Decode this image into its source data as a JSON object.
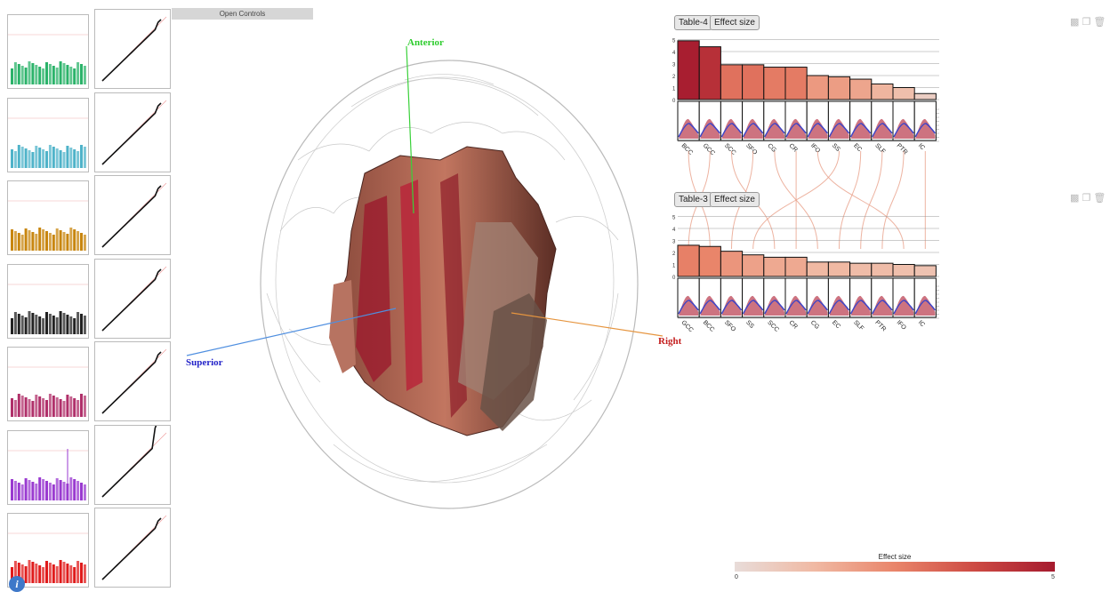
{
  "controls": {
    "open_label": "Open Controls"
  },
  "brain": {
    "anterior_label": "Anterior",
    "superior_label": "Superior",
    "right_label": "Right",
    "anterior_color": "#2ecc2e",
    "superior_color": "#2323c8",
    "right_color": "#c41f1f"
  },
  "panels": [
    {
      "title": "Table-4",
      "metric": "Effect size",
      "regions": [
        "BCC",
        "GCC",
        "SCC",
        "SFO",
        "CG",
        "CR",
        "IFO",
        "SS",
        "EC",
        "SLF",
        "PTR",
        "IC"
      ],
      "values": [
        4.9,
        4.4,
        2.9,
        2.9,
        2.7,
        2.7,
        2.0,
        1.9,
        1.7,
        1.3,
        1.0,
        0.5
      ],
      "ticks_top": [
        "5",
        "4",
        "3",
        "2",
        "1",
        "0"
      ],
      "ticks_bottom": [
        "-1",
        "0",
        "1",
        "2",
        "3",
        "4"
      ]
    },
    {
      "title": "Table-3",
      "metric": "Effect size",
      "regions": [
        "GCC",
        "BCC",
        "SFO",
        "SS",
        "SCC",
        "CR",
        "CG",
        "EC",
        "SLF",
        "PTR",
        "IFO",
        "IC"
      ],
      "values": [
        2.6,
        2.5,
        2.1,
        1.8,
        1.6,
        1.6,
        1.2,
        1.2,
        1.1,
        1.1,
        1.0,
        0.9
      ],
      "ticks_top": [
        "5",
        "4",
        "3",
        "2",
        "1",
        "0"
      ],
      "ticks_bottom": [
        "-1",
        "0",
        "1",
        "2",
        "3",
        "4"
      ]
    }
  ],
  "colorbar": {
    "title": "Effect size",
    "min": "0",
    "max": "5"
  },
  "info_glyph": "i",
  "manhattan_colors": [
    "#2bb36a",
    "#4fb3c9",
    "#c8860f",
    "#222222",
    "#b0306a",
    "#9a3ad0",
    "#e01b1b"
  ]
}
